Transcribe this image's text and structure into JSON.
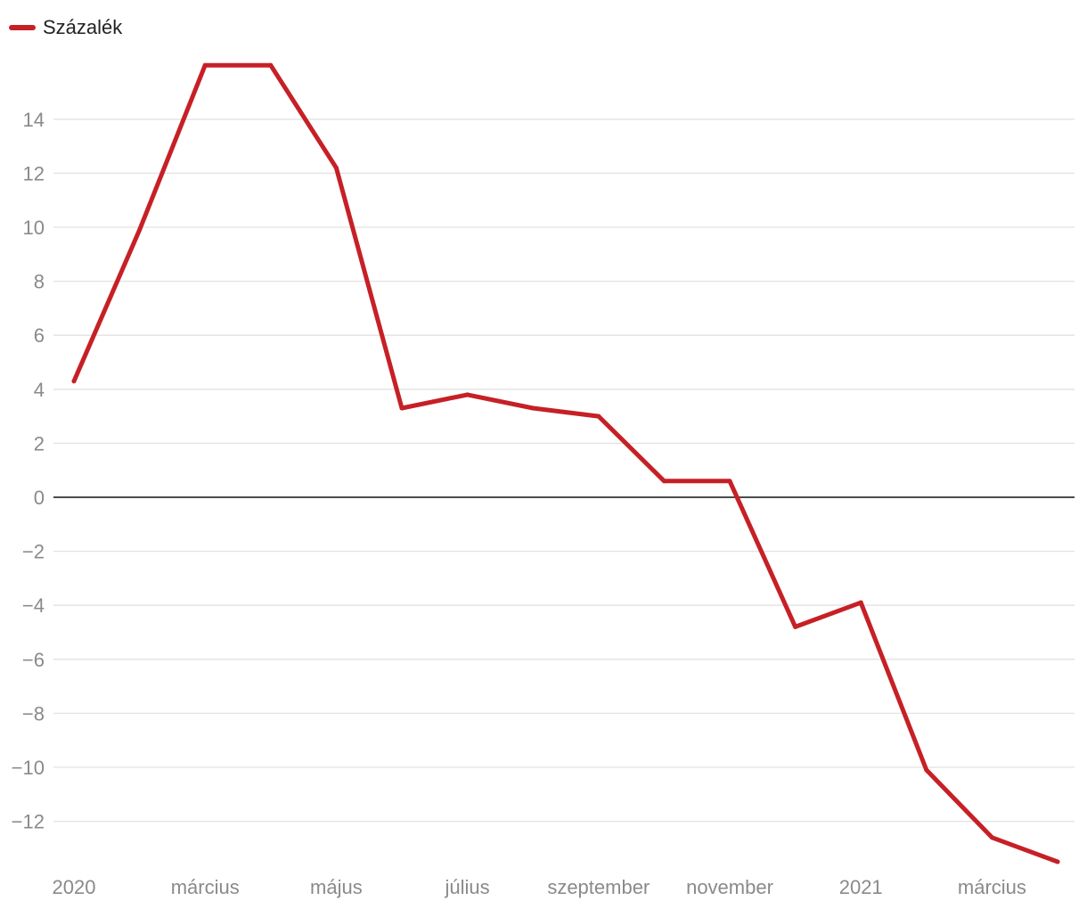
{
  "chart_data": {
    "type": "line",
    "title": "",
    "xlabel": "",
    "ylabel": "",
    "legend": {
      "placement": "top-left"
    },
    "grid": true,
    "ylim": [
      -13.8,
      17
    ],
    "y_ticks": [
      14,
      12,
      10,
      8,
      6,
      4,
      2,
      0,
      -2,
      -4,
      -6,
      -8,
      -10,
      -12
    ],
    "y_tick_labels": [
      "14",
      "12",
      "10",
      "8",
      "6",
      "4",
      "2",
      "0",
      "−2",
      "−4",
      "−6",
      "−8",
      "−10",
      "−12"
    ],
    "x_tick_labels": [
      {
        "label": "2020",
        "month_index": 0
      },
      {
        "label": "március",
        "month_index": 2
      },
      {
        "label": "május",
        "month_index": 4
      },
      {
        "label": "július",
        "month_index": 6
      },
      {
        "label": "szeptember",
        "month_index": 8
      },
      {
        "label": "november",
        "month_index": 10
      },
      {
        "label": "2021",
        "month_index": 12
      },
      {
        "label": "március",
        "month_index": 14
      }
    ],
    "x": [
      "2020-01",
      "2020-02",
      "2020-03",
      "2020-04",
      "2020-05",
      "2020-06",
      "2020-07",
      "2020-08",
      "2020-09",
      "2020-10",
      "2020-11",
      "2020-12",
      "2021-01",
      "2021-02",
      "2021-03",
      "2021-04"
    ],
    "series": [
      {
        "name": "Százalék",
        "color": "#c62026",
        "values": [
          4.3,
          9.9,
          16.0,
          16.0,
          12.2,
          3.3,
          3.8,
          3.3,
          3.0,
          0.6,
          0.6,
          -4.8,
          -3.9,
          -10.1,
          -12.6,
          -13.5
        ]
      }
    ]
  }
}
